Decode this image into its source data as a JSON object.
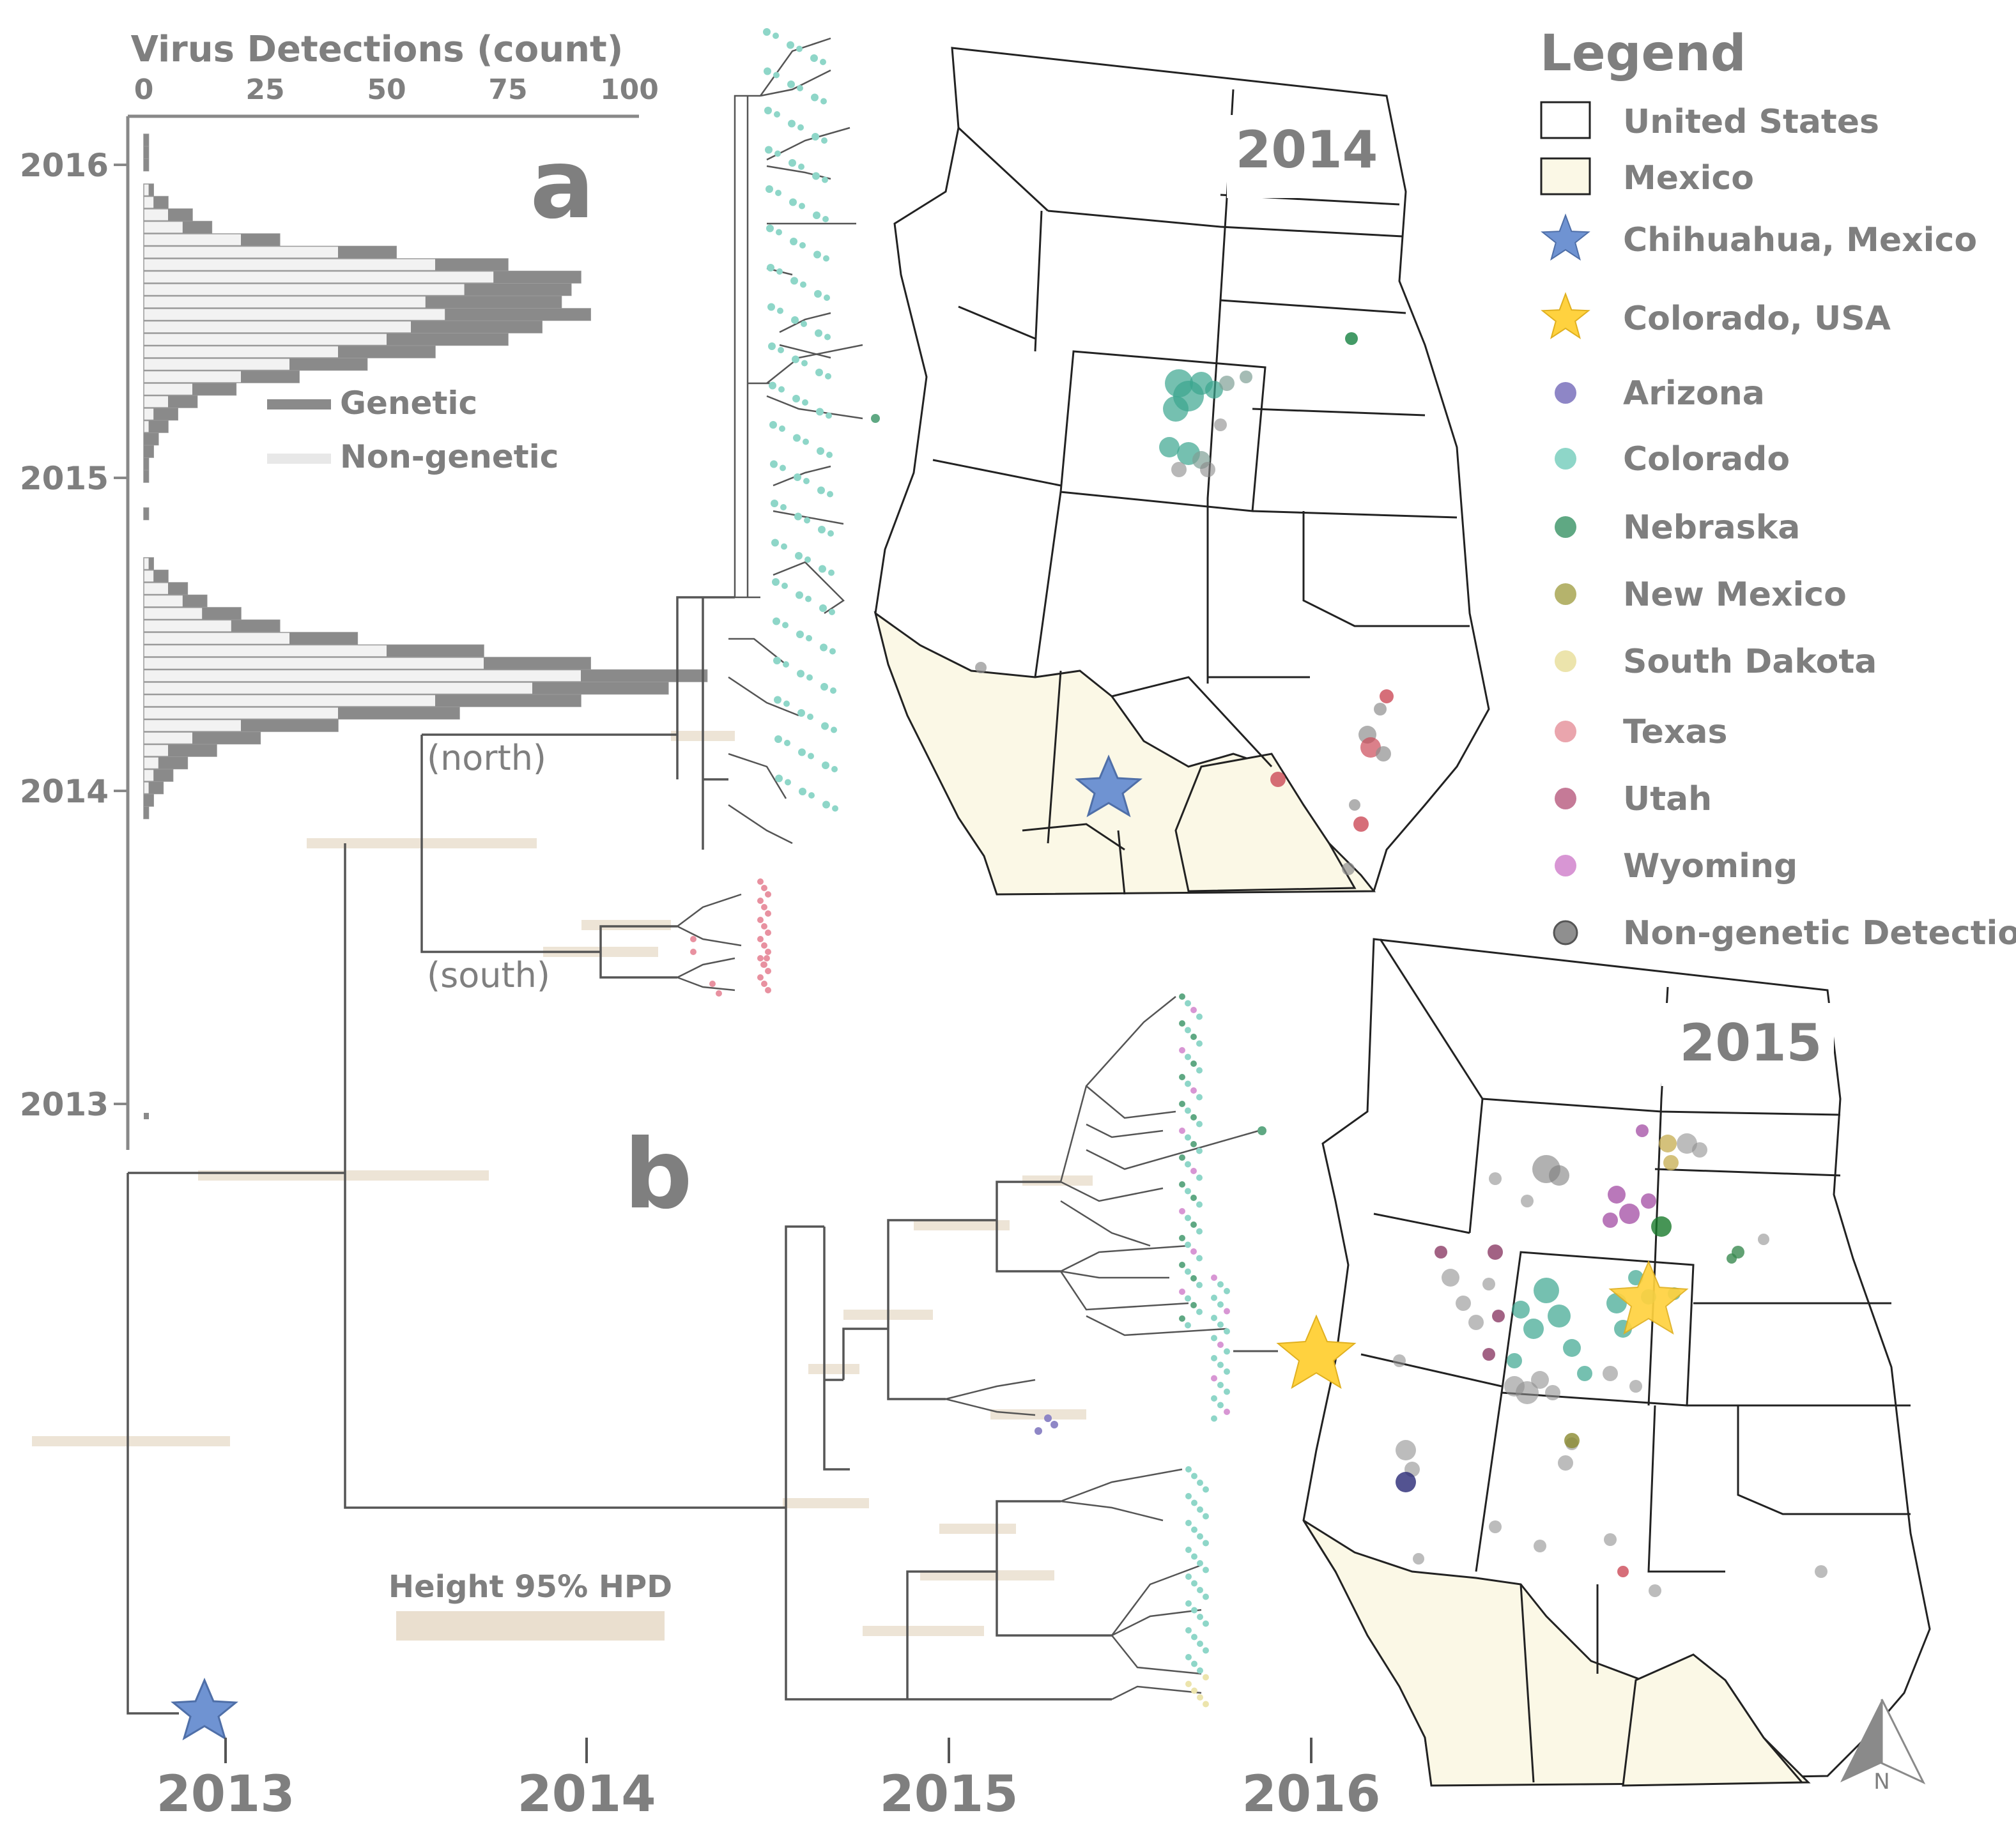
{
  "panel_a_label": "a",
  "panel_b_label": "b",
  "inset_chart": {
    "title": "Virus Detections (count)",
    "ticks": [
      "0",
      "25",
      "50",
      "75",
      "100"
    ],
    "year_ticks": [
      "2016",
      "2015",
      "2014",
      "2013"
    ],
    "legend_genetic": "Genetic",
    "legend_nongenetic": "Non-genetic"
  },
  "chart_data": {
    "type": "bar",
    "title": "Virus Detections (count)",
    "orientation": "horizontal",
    "xlim": [
      0,
      100
    ],
    "y_axis": "time (year)",
    "series": [
      {
        "name": "Genetic",
        "values": [
          1,
          1,
          1,
          0,
          1,
          3,
          5,
          6,
          8,
          12,
          15,
          18,
          22,
          28,
          30,
          27,
          25,
          20,
          16,
          12,
          9,
          6,
          5,
          4,
          3,
          2,
          1,
          1,
          0,
          0,
          1,
          0,
          0,
          0,
          1,
          3,
          4,
          5,
          8,
          10,
          14,
          20,
          22,
          26,
          28,
          30,
          25,
          20,
          14,
          10,
          6,
          4,
          3,
          2,
          1
        ]
      },
      {
        "name": "Non-genetic",
        "values": [
          0,
          0,
          0,
          0,
          1,
          2,
          5,
          8,
          20,
          40,
          60,
          72,
          66,
          58,
          62,
          55,
          50,
          40,
          30,
          20,
          10,
          5,
          2,
          1,
          0,
          0,
          0,
          0,
          0,
          0,
          0,
          0,
          0,
          0,
          1,
          2,
          5,
          8,
          12,
          18,
          30,
          50,
          70,
          90,
          80,
          60,
          40,
          20,
          10,
          5,
          3,
          2,
          1,
          0,
          0
        ]
      }
    ]
  },
  "tree": {
    "clade_north": "(north)",
    "clade_south": "(south)",
    "hpd_label": "Height 95% HPD",
    "x_ticks": [
      "2013",
      "2014",
      "2015",
      "2016"
    ]
  },
  "maps": {
    "map_2014_year": "2014",
    "map_2015_year": "2015",
    "north_arrow": "N"
  },
  "legend": {
    "title": "Legend",
    "items": [
      {
        "label": "United States",
        "kind": "box",
        "color": "#ffffff"
      },
      {
        "label": "Mexico",
        "kind": "box",
        "color": "#fbf8e6"
      },
      {
        "label": "Chihuahua, Mexico",
        "kind": "star",
        "color": "#6f93d2"
      },
      {
        "label": "Colorado, USA",
        "kind": "star",
        "color": "#ffd23f"
      },
      {
        "label": "Arizona",
        "kind": "dot",
        "color": "#8e86c6"
      },
      {
        "label": "Colorado",
        "kind": "dot",
        "color": "#8ed6c8"
      },
      {
        "label": "Nebraska",
        "kind": "dot",
        "color": "#5fa883"
      },
      {
        "label": "New Mexico",
        "kind": "dot",
        "color": "#b5b36c"
      },
      {
        "label": "South Dakota",
        "kind": "dot",
        "color": "#ece4ac"
      },
      {
        "label": "Texas",
        "kind": "dot",
        "color": "#eaa5ad"
      },
      {
        "label": "Utah",
        "kind": "dot",
        "color": "#c57a97"
      },
      {
        "label": "Wyoming",
        "kind": "dot",
        "color": "#d896d4"
      },
      {
        "label": "Non-genetic Detection",
        "kind": "graydot",
        "color": "#8f8f8f"
      }
    ]
  }
}
